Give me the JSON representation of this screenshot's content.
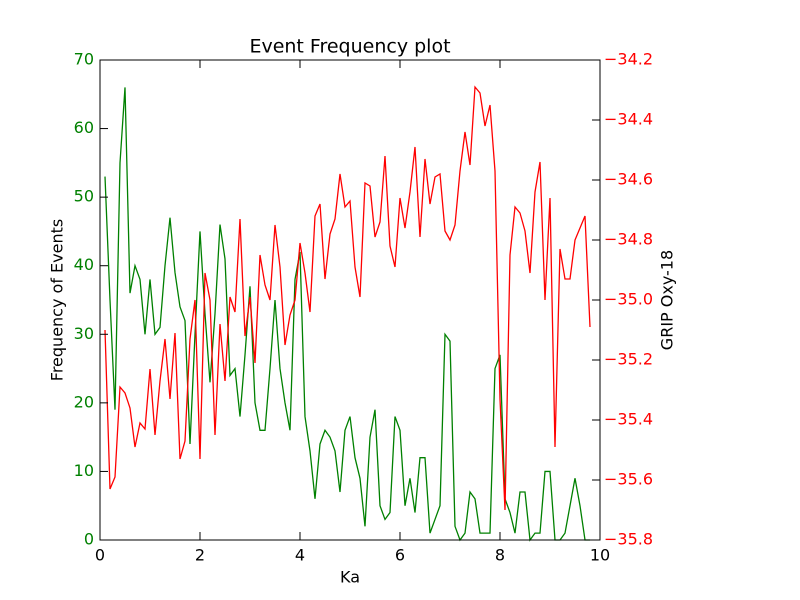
{
  "chart_data": {
    "type": "line",
    "title": "Event Frequency plot",
    "xlabel": "Ka",
    "ylabel": "Frequency of Events",
    "y2label": "GRIP Oxy-18",
    "x": [
      0.1,
      0.2,
      0.3,
      0.4,
      0.5,
      0.6,
      0.7,
      0.8,
      0.9,
      1.0,
      1.1,
      1.2,
      1.3,
      1.4,
      1.5,
      1.6,
      1.7,
      1.8,
      1.9,
      2.0,
      2.1,
      2.2,
      2.3,
      2.4,
      2.5,
      2.6,
      2.7,
      2.8,
      2.9,
      3.0,
      3.1,
      3.2,
      3.3,
      3.4,
      3.5,
      3.6,
      3.7,
      3.8,
      3.9,
      4.0,
      4.1,
      4.2,
      4.3,
      4.4,
      4.5,
      4.6,
      4.7,
      4.8,
      4.9,
      5.0,
      5.1,
      5.2,
      5.3,
      5.4,
      5.5,
      5.6,
      5.7,
      5.8,
      5.9,
      6.0,
      6.1,
      6.2,
      6.3,
      6.4,
      6.5,
      6.6,
      6.7,
      6.8,
      6.9,
      7.0,
      7.1,
      7.2,
      7.3,
      7.4,
      7.5,
      7.6,
      7.7,
      7.8,
      7.9,
      8.0,
      8.1,
      8.2,
      8.3,
      8.4,
      8.5,
      8.6,
      8.7,
      8.8,
      8.9,
      9.0,
      9.1,
      9.2,
      9.3,
      9.4,
      9.5,
      9.6,
      9.7,
      9.8
    ],
    "series": [
      {
        "color": "#008000",
        "axis": "y",
        "values": [
          53,
          35,
          19,
          55,
          66,
          36,
          40,
          38,
          30,
          38,
          30,
          31,
          40,
          47,
          39,
          34,
          32,
          14,
          30,
          45,
          33,
          23,
          33,
          46,
          41,
          24,
          25,
          18,
          27,
          37,
          20,
          16,
          16,
          25,
          35,
          25,
          20,
          16,
          38,
          42,
          18,
          13,
          6,
          14,
          16,
          15,
          13,
          7,
          16,
          18,
          12,
          9,
          2,
          15,
          19,
          5,
          3,
          4,
          18,
          16,
          5,
          9,
          4,
          12,
          12,
          1,
          3,
          5,
          30,
          29,
          2,
          0,
          1,
          7,
          6,
          1,
          1,
          1,
          25,
          27,
          6,
          4,
          1,
          7,
          7,
          0,
          1,
          1,
          10,
          10,
          0,
          0,
          1,
          5,
          9,
          5,
          0,
          0
        ]
      },
      {
        "color": "#ff0000",
        "axis": "y2",
        "values": [
          -35.1,
          -35.63,
          -35.59,
          -35.29,
          -35.31,
          -35.36,
          -35.49,
          -35.41,
          -35.43,
          -35.23,
          -35.45,
          -35.27,
          -35.13,
          -35.33,
          -35.11,
          -35.53,
          -35.47,
          -35.13,
          -35.0,
          -35.53,
          -34.91,
          -35.0,
          -35.45,
          -35.08,
          -35.27,
          -34.99,
          -35.04,
          -34.73,
          -35.12,
          -34.99,
          -35.21,
          -34.85,
          -34.95,
          -35.0,
          -34.75,
          -34.89,
          -35.15,
          -35.05,
          -35.0,
          -34.81,
          -34.91,
          -35.04,
          -34.72,
          -34.68,
          -34.93,
          -34.78,
          -34.73,
          -34.58,
          -34.69,
          -34.67,
          -34.89,
          -34.99,
          -34.61,
          -34.62,
          -34.79,
          -34.74,
          -34.52,
          -34.82,
          -34.89,
          -34.66,
          -34.76,
          -34.64,
          -34.49,
          -34.79,
          -34.53,
          -34.68,
          -34.59,
          -34.58,
          -34.77,
          -34.8,
          -34.75,
          -34.57,
          -34.44,
          -34.55,
          -34.29,
          -34.31,
          -34.42,
          -34.35,
          -34.57,
          -35.33,
          -35.7,
          -34.85,
          -34.69,
          -34.71,
          -34.77,
          -34.91,
          -34.64,
          -34.54,
          -35.0,
          -34.66,
          -35.49,
          -34.83,
          -34.93,
          -34.93,
          -34.8,
          -34.76,
          -34.72,
          -35.09
        ]
      }
    ],
    "xlim": [
      0,
      10
    ],
    "xticks": [
      0,
      2,
      4,
      6,
      8,
      10
    ],
    "ylim": [
      0,
      70
    ],
    "yticks": [
      0,
      10,
      20,
      30,
      40,
      50,
      60,
      70
    ],
    "y2lim": [
      -35.8,
      -34.2
    ],
    "y2ticks": [
      {
        "value": -35.8,
        "label": "−35.8"
      },
      {
        "value": -35.6,
        "label": "−35.6"
      },
      {
        "value": -35.4,
        "label": "−35.4"
      },
      {
        "value": -35.2,
        "label": "−35.2"
      },
      {
        "value": -35.0,
        "label": "−35.0"
      },
      {
        "value": -34.8,
        "label": "−34.8"
      },
      {
        "value": -34.6,
        "label": "−34.6"
      },
      {
        "value": -34.4,
        "label": "−34.4"
      },
      {
        "value": -34.2,
        "label": "−34.2"
      }
    ]
  }
}
